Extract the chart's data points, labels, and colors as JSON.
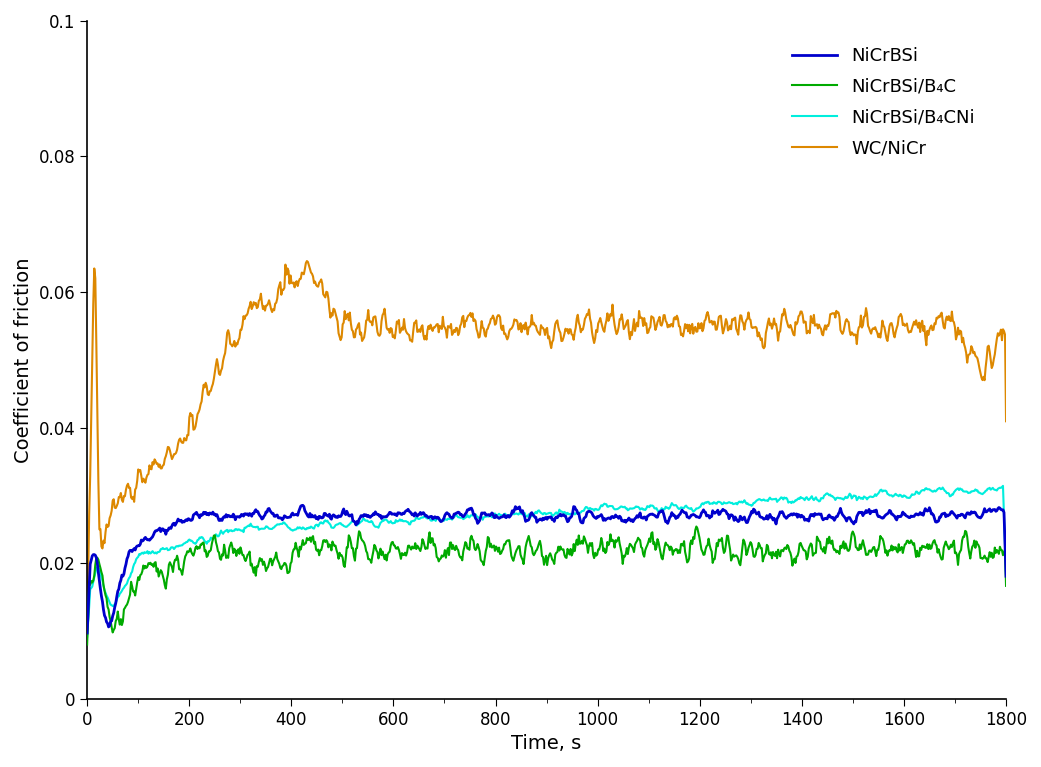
{
  "title": "",
  "xlabel": "Time, s",
  "ylabel": "Coefficient of friction",
  "xlim": [
    0,
    1800
  ],
  "ylim": [
    0,
    0.1
  ],
  "xticks": [
    0,
    200,
    400,
    600,
    800,
    1000,
    1200,
    1400,
    1600,
    1800
  ],
  "yticks": [
    0,
    0.02,
    0.04,
    0.06,
    0.08,
    0.1
  ],
  "colors": {
    "NiCrBSi": "#0000cc",
    "NiCrBSi/B4C": "#00aa00",
    "NiCrBSi/B4CNi": "#00eedd",
    "WC/NiCr": "#dd8800"
  },
  "legend_labels": [
    "NiCrBSi",
    "NiCrBSi/B₄C",
    "NiCrBSi/B₄CNi",
    "WC/NiCr"
  ],
  "linewidth": 1.5,
  "figsize": [
    10.41,
    7.67
  ],
  "dpi": 100
}
